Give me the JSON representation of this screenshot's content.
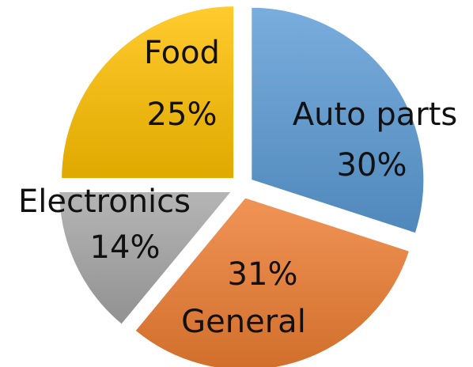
{
  "chart_data": {
    "type": "pie",
    "title": "",
    "legend": "none",
    "slices": [
      {
        "label": "Auto parts",
        "value": 30,
        "value_label": "30%",
        "color": "#5B9BD5"
      },
      {
        "label": "General",
        "value": 31,
        "value_label": "31%",
        "color": "#ED7D31"
      },
      {
        "label": "Electronics",
        "value": 14,
        "value_label": "14%",
        "color": "#A5A5A5"
      },
      {
        "label": "Food",
        "value": 25,
        "value_label": "25%",
        "color": "#FFC000"
      }
    ]
  }
}
